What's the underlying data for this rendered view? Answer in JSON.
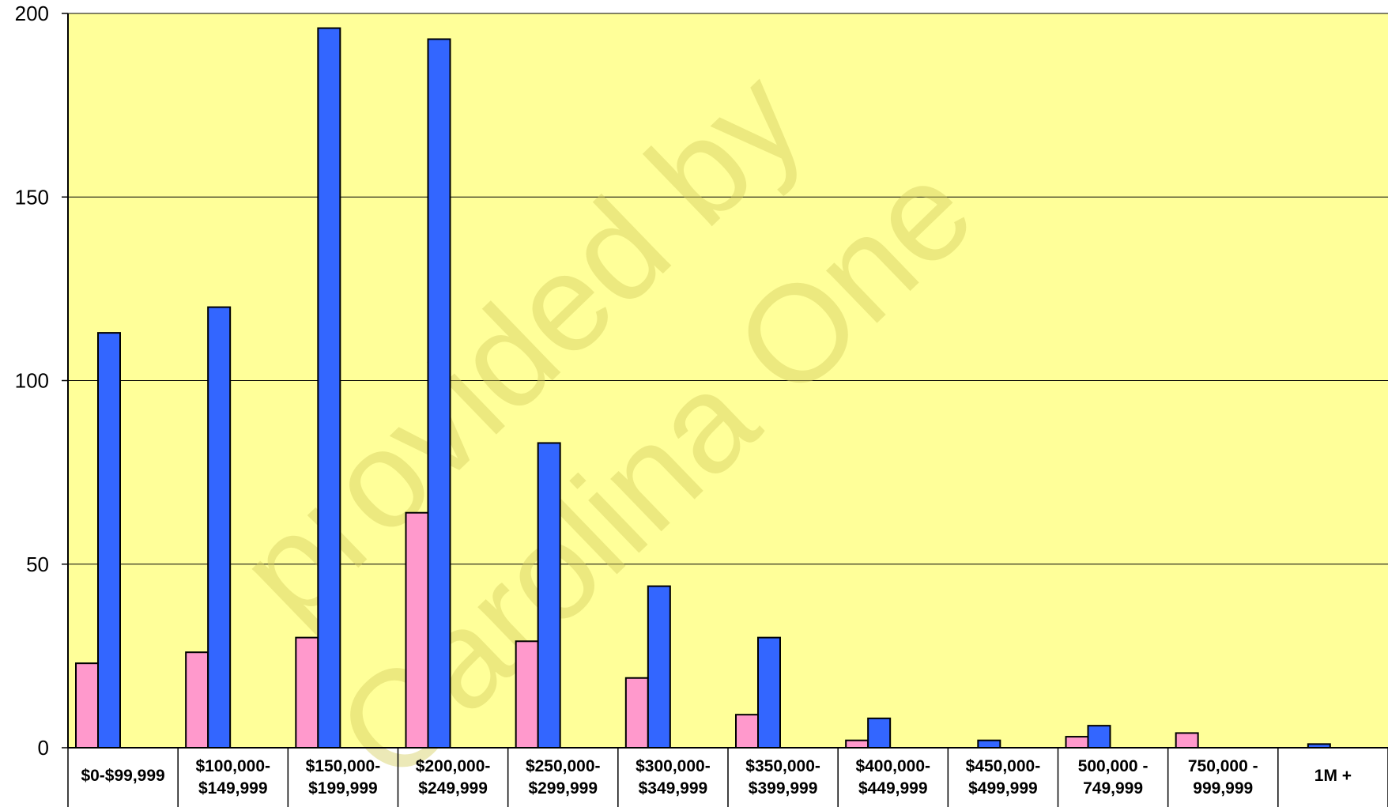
{
  "chart_data": {
    "type": "bar",
    "categories": [
      [
        "$0-$99,999"
      ],
      [
        "$100,000-",
        "$149,999"
      ],
      [
        "$150,000-",
        "$199,999"
      ],
      [
        "$200,000-",
        "$249,999"
      ],
      [
        "$250,000-",
        "$299,999"
      ],
      [
        "$300,000-",
        "$349,999"
      ],
      [
        "$350,000-",
        "$399,999"
      ],
      [
        "$400,000-",
        "$449,999"
      ],
      [
        "$450,000-",
        "$499,999"
      ],
      [
        "500,000 -",
        "749,999"
      ],
      [
        "750,000 -",
        "999,999"
      ],
      [
        "1M +"
      ]
    ],
    "series": [
      {
        "values": [
          23,
          26,
          30,
          64,
          29,
          19,
          9,
          2,
          0,
          3,
          4,
          0
        ],
        "color": "#ff99cc"
      },
      {
        "values": [
          113,
          120,
          196,
          193,
          83,
          44,
          30,
          8,
          2,
          6,
          0,
          1
        ],
        "color": "#3366ff"
      }
    ],
    "ylim": [
      0,
      200
    ],
    "yticks": [
      0,
      50,
      100,
      150,
      200
    ],
    "grid": true,
    "plot_background": "#ffff99",
    "watermark": [
      "provided by",
      "Carolina One"
    ]
  }
}
